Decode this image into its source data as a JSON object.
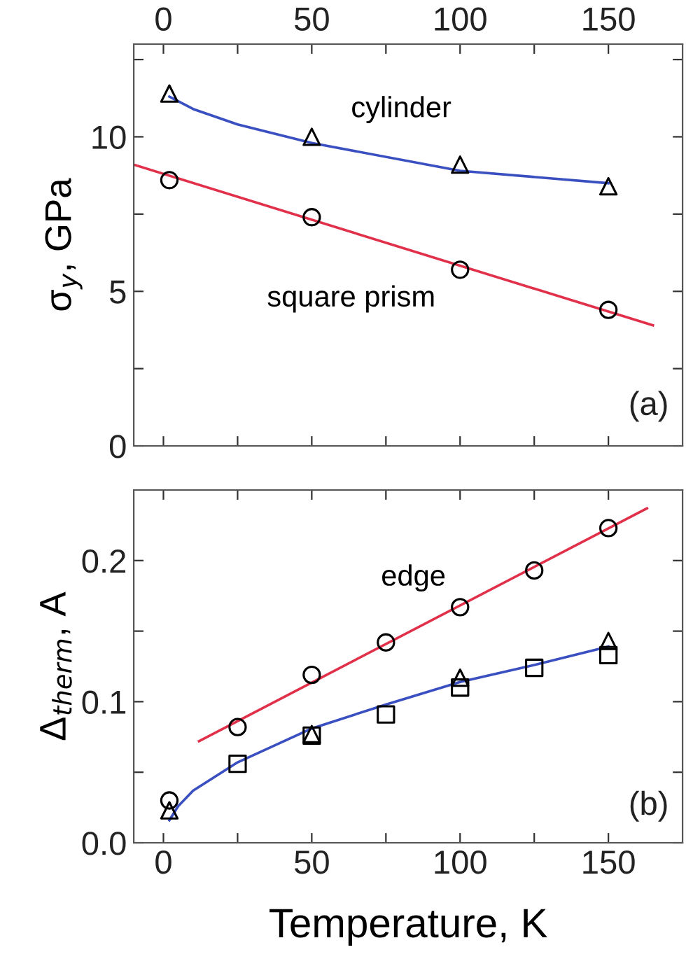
{
  "chart_data": [
    {
      "type": "scatter",
      "ylabel": "σ$_{y}$, GPa",
      "xlim": [
        -10,
        175
      ],
      "xticks": [
        0,
        {
          "value": 25,
          "label": null
        },
        50,
        {
          "value": 75,
          "label": null
        },
        100,
        {
          "value": 125,
          "label": null
        },
        150
      ],
      "ylim": [
        0,
        13
      ],
      "yticks": [
        0,
        {
          "value": 2.5,
          "label": null
        },
        5,
        {
          "value": 7.5,
          "label": null
        },
        10,
        {
          "value": 12.5,
          "label": null
        }
      ],
      "grid": false,
      "annotations": [
        "(a)"
      ],
      "series": [
        {
          "type": "line",
          "color": "#3a4fc0",
          "marker": "none",
          "x": [
            2,
            10,
            25,
            50,
            100,
            150
          ],
          "values": [
            11.3,
            10.9,
            10.4,
            9.8,
            8.9,
            8.5
          ]
        },
        {
          "type": "line",
          "color": "#e0304a",
          "marker": "none",
          "x": [
            -10,
            165
          ],
          "values": [
            9.1,
            3.9
          ]
        },
        {
          "name": "cylinder",
          "color": "#000000",
          "marker": "triangle",
          "x": [
            2,
            50,
            100,
            150
          ],
          "values": [
            11.4,
            10.0,
            9.1,
            8.4
          ]
        },
        {
          "name": "square prism",
          "color": "#000000",
          "marker": "circle",
          "x": [
            2,
            50,
            100,
            150
          ],
          "values": [
            8.6,
            7.4,
            5.7,
            4.4
          ]
        }
      ]
    },
    {
      "type": "scatter",
      "xlabel": "Temperature, K",
      "ylabel": "Δ$_{therm}$, A",
      "xlim": [
        -10,
        175
      ],
      "xticks": [
        0,
        {
          "value": 25,
          "label": null
        },
        50,
        {
          "value": 75,
          "label": null
        },
        100,
        {
          "value": 125,
          "label": null
        },
        150
      ],
      "ylim": [
        0,
        0.25
      ],
      "yticks": [
        {
          "value": 0,
          "label": "0.0"
        },
        {
          "value": 0.05,
          "label": null
        },
        0.1,
        {
          "value": 0.15,
          "label": null
        },
        0.2
      ],
      "grid": false,
      "annotations": [
        "(b)"
      ],
      "series": [
        {
          "type": "line",
          "color": "#e0304a",
          "marker": "none",
          "x": [
            12,
            163
          ],
          "values": [
            0.072,
            0.237
          ]
        },
        {
          "type": "line",
          "color": "#3a4fc0",
          "marker": "none",
          "x": [
            2,
            5,
            10,
            25,
            50,
            75,
            100,
            125,
            150
          ],
          "values": [
            0.016,
            0.026,
            0.037,
            0.057,
            0.081,
            0.098,
            0.114,
            0.126,
            0.139
          ]
        },
        {
          "name": "edge",
          "color": "#000000",
          "marker": "circle",
          "x": [
            2,
            25,
            50,
            75,
            100,
            125,
            150
          ],
          "values": [
            0.03,
            0.082,
            0.119,
            0.142,
            0.167,
            0.193,
            0.223
          ]
        },
        {
          "color": "#000000",
          "marker": "triangle",
          "x": [
            2,
            50,
            100,
            150
          ],
          "values": [
            0.023,
            0.077,
            0.117,
            0.143
          ]
        },
        {
          "color": "#000000",
          "marker": "square",
          "x": [
            25,
            50,
            75,
            100,
            125,
            150
          ],
          "values": [
            0.056,
            0.076,
            0.091,
            0.11,
            0.124,
            0.133
          ]
        }
      ]
    }
  ]
}
